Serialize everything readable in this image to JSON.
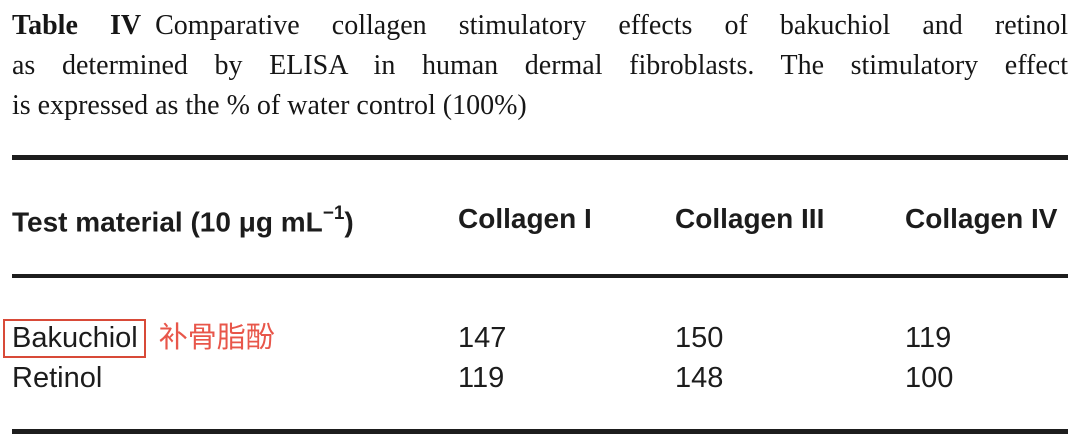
{
  "caption": {
    "label": "Table IV",
    "line1_rest": "Comparative collagen stimulatory effects of bakuchiol and retinol",
    "line2": "as determined by ELISA in human dermal fibroblasts. The stimulatory effect",
    "line3": "is expressed as the % of water control (100%)"
  },
  "table": {
    "header": {
      "test_material_prefix": "Test material (10 μg mL",
      "test_material_sup": "−1",
      "test_material_suffix": ")",
      "collagen_i": "Collagen I",
      "collagen_iii": "Collagen III",
      "collagen_iv": "Collagen IV"
    },
    "rows": [
      {
        "material": "Bakuchiol",
        "annotation_cn": "补骨脂酚",
        "collagen_i": "147",
        "collagen_iii": "150",
        "collagen_iv": "119"
      },
      {
        "material": "Retinol",
        "collagen_i": "119",
        "collagen_iii": "148",
        "collagen_iv": "100"
      }
    ]
  },
  "annotation": {
    "highlight_border_color": "#d84a38",
    "translation_text_color": "#e8564a"
  }
}
